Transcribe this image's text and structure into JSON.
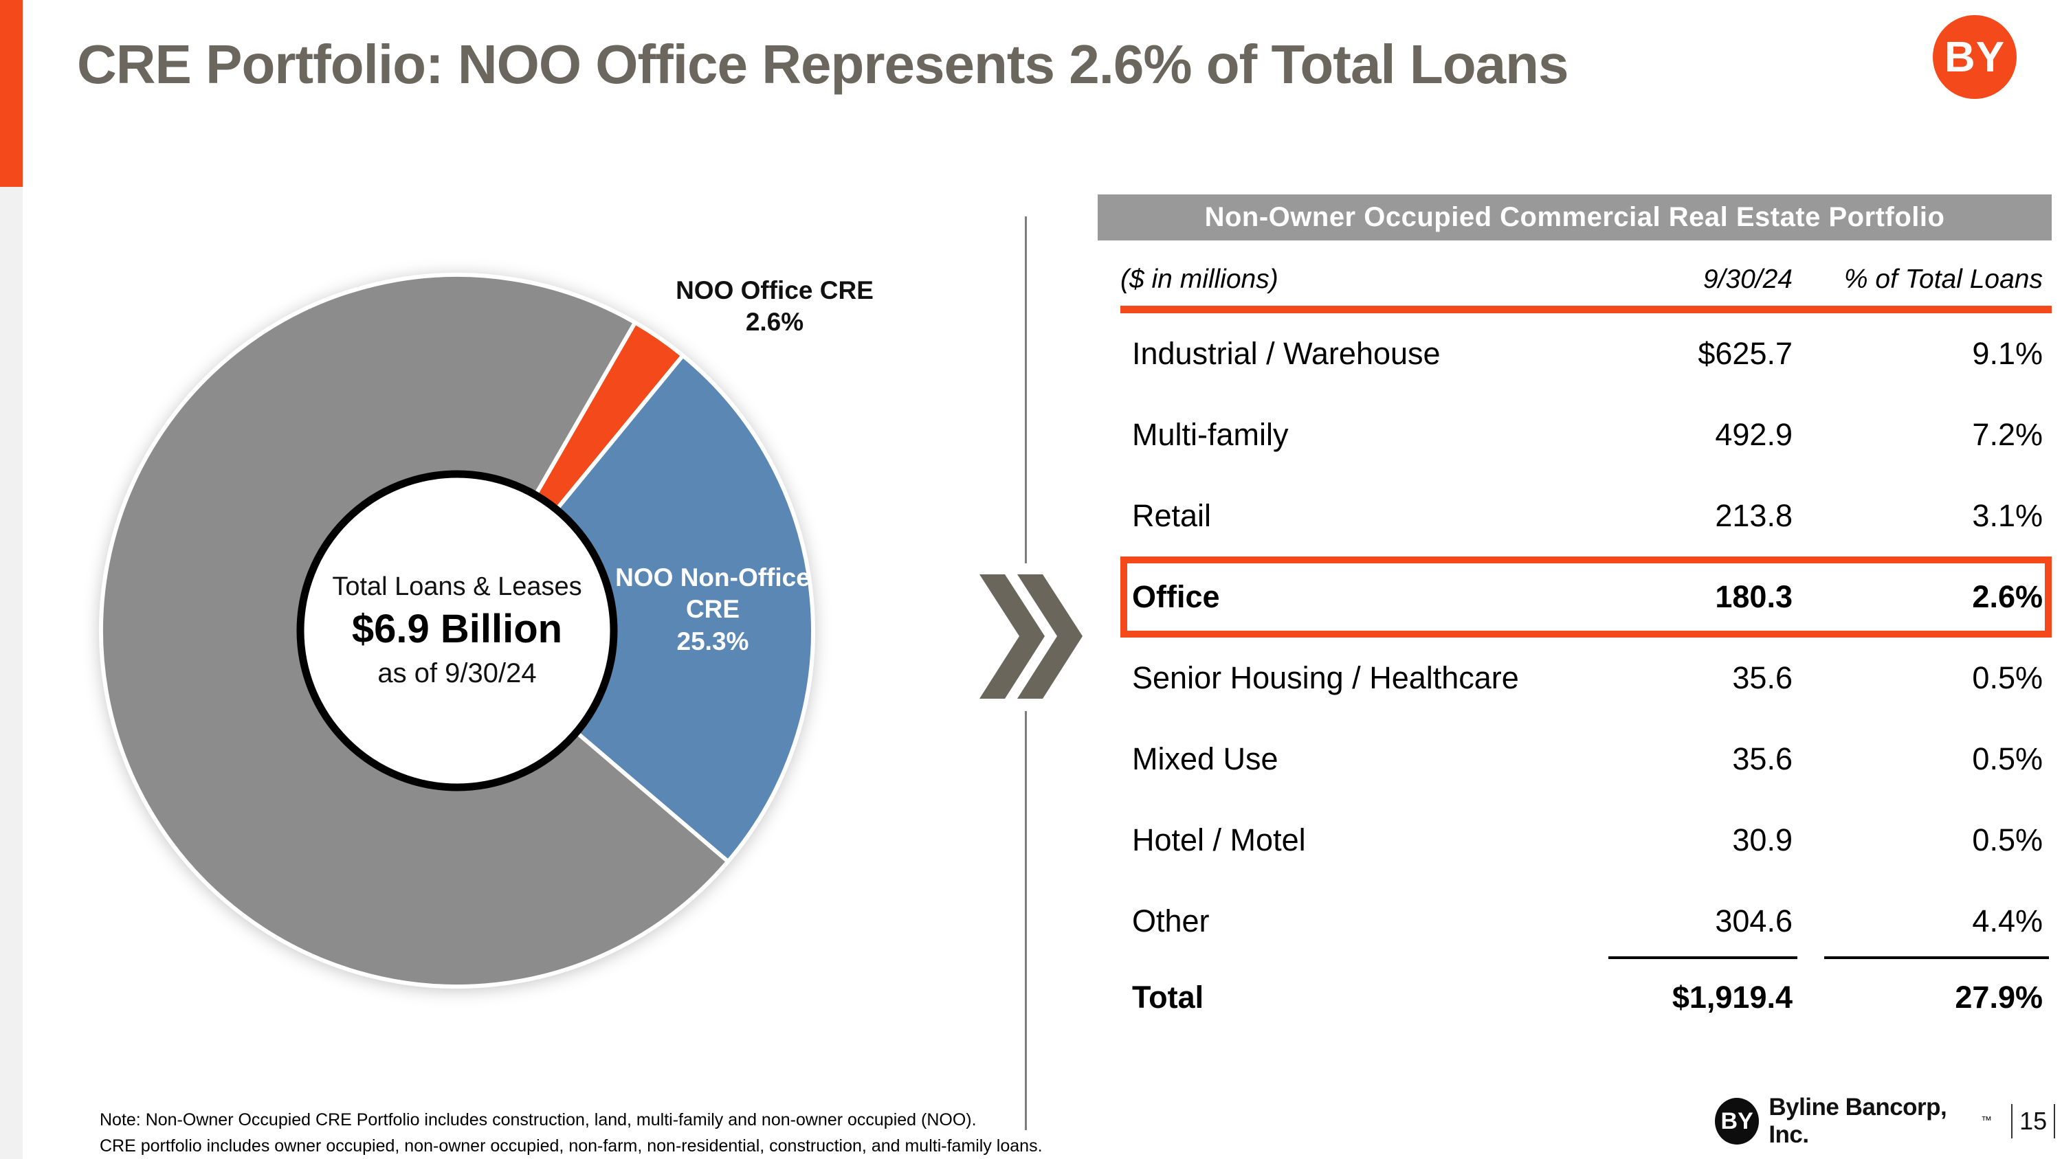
{
  "slide": {
    "title": "CRE Portfolio: NOO Office Represents 2.6% of Total Loans",
    "page_number": "15",
    "brand": {
      "logo_text": "BY",
      "company": "Byline Bancorp, Inc.",
      "trademark": "™"
    },
    "notes": [
      "Note: Non-Owner Occupied CRE Portfolio includes construction, land, multi-family and non-owner occupied (NOO).",
      "CRE portfolio includes owner occupied, non-owner occupied, non-farm, non-residential, construction, and multi-family loans."
    ],
    "colors": {
      "accent_orange": "#f4491a",
      "pie_blue": "#5b87b4",
      "pie_gray": "#8c8c8c",
      "banner_gray": "#999999",
      "title_gray": "#6b665e",
      "chevron_gray": "#6a665c",
      "divider_gray": "#7d7d7d",
      "left_strip": "#f1f1f1",
      "footer_black": "#111111"
    }
  },
  "chart_data": {
    "type": "pie",
    "title": "Total Loans & Leases composition as of 9/30/24",
    "start_angle_deg": 30,
    "slices": [
      {
        "label": "NOO Office CRE",
        "pct": 2.6,
        "color_key": "accent_orange"
      },
      {
        "label": "NOO Non-Office CRE",
        "pct": 25.3,
        "color_key": "pie_blue"
      },
      {
        "label": "",
        "pct": 72.1,
        "color_key": "pie_gray"
      }
    ],
    "center_label": {
      "line1": "Total Loans & Leases",
      "line2": "$6.9 Billion",
      "line3": "as of 9/30/24"
    },
    "callouts": {
      "office": [
        "NOO Office CRE",
        "2.6%"
      ],
      "non_office": [
        "NOO Non-Office",
        "CRE",
        "25.3%"
      ]
    }
  },
  "table": {
    "banner": "Non-Owner Occupied Commercial Real Estate Portfolio",
    "units_note": "($ in millions)",
    "col_headers": [
      "9/30/24",
      "% of Total Loans"
    ],
    "rows": [
      {
        "label": "Industrial / Warehouse",
        "amount": "$625.7",
        "pct": "9.1%",
        "flags": ""
      },
      {
        "label": "Multi-family",
        "amount": "492.9",
        "pct": "7.2%",
        "flags": ""
      },
      {
        "label": "Retail",
        "amount": "213.8",
        "pct": "3.1%",
        "flags": ""
      },
      {
        "label": "Office",
        "amount": "180.3",
        "pct": "2.6%",
        "flags": "bold highlight"
      },
      {
        "label": "Senior Housing / Healthcare",
        "amount": "35.6",
        "pct": "0.5%",
        "flags": ""
      },
      {
        "label": "Mixed Use",
        "amount": "35.6",
        "pct": "0.5%",
        "flags": ""
      },
      {
        "label": "Hotel / Motel",
        "amount": "30.9",
        "pct": "0.5%",
        "flags": ""
      },
      {
        "label": "Other",
        "amount": "304.6",
        "pct": "4.4%",
        "flags": "underline-after"
      },
      {
        "label": "Total",
        "amount": "$1,919.4",
        "pct": "27.9%",
        "flags": "bold total"
      }
    ]
  }
}
